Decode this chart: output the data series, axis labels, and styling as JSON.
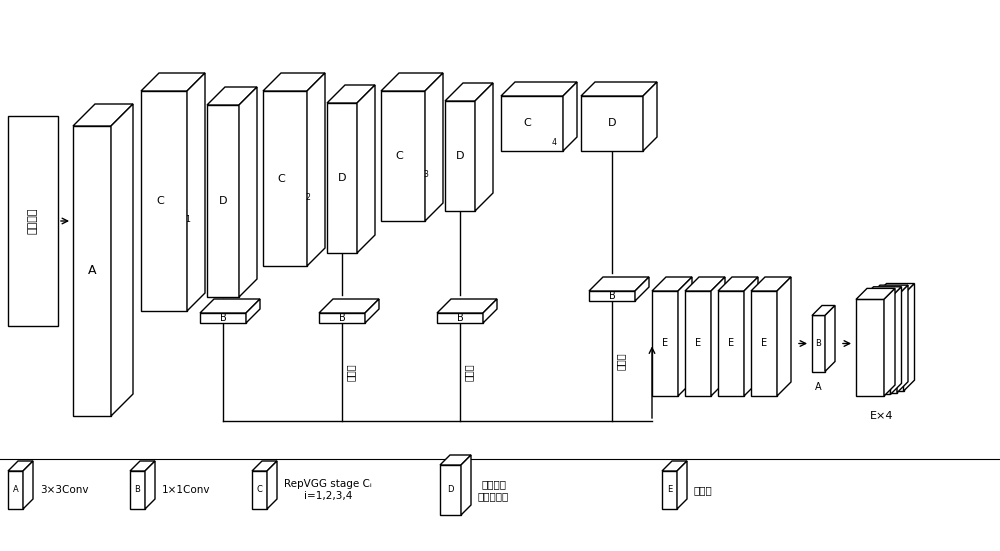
{
  "bg_color": "#ffffff",
  "line_color": "#000000",
  "face_color": "#ffffff",
  "legend_items": [
    {
      "label": "A",
      "desc": "3×3Conv"
    },
    {
      "label": "B",
      "desc": "1×1Conv"
    },
    {
      "label": "C",
      "desc": "RepVGG stage Cᵢ\ni=1,2,3,4"
    },
    {
      "label": "D",
      "desc": "特征提取\n注意力机制"
    },
    {
      "label": "E",
      "desc": "特征图"
    }
  ],
  "input_label": "输入图像",
  "upsample_labels": [
    "上采样",
    "上采样",
    "上采样"
  ]
}
